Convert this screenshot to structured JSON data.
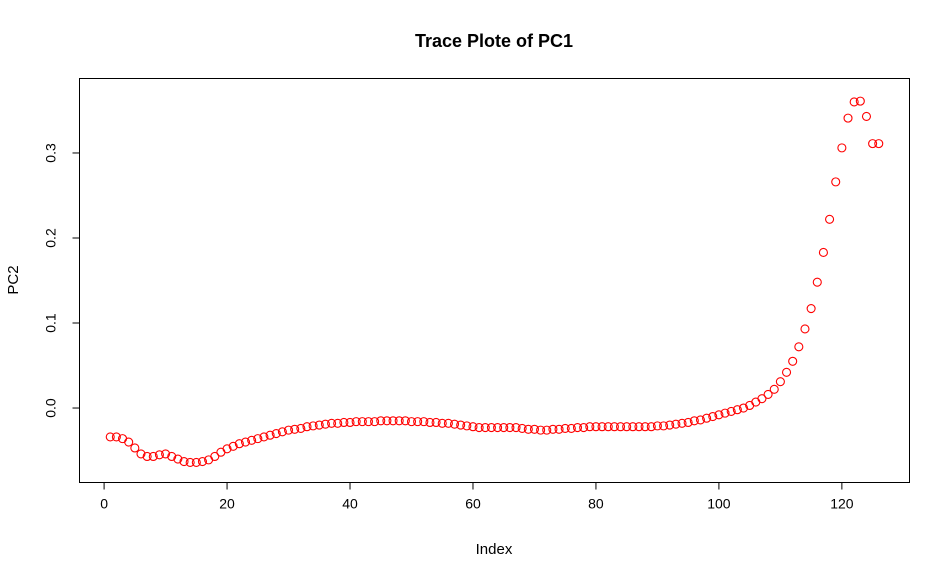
{
  "chart_data": {
    "type": "scatter",
    "title": "Trace Plote of PC1",
    "xlabel": "Index",
    "ylabel": "PC2",
    "xlim": [
      1,
      126
    ],
    "ylim": [
      -0.07,
      0.37
    ],
    "xticks": [
      0,
      20,
      40,
      60,
      80,
      100,
      120
    ],
    "yticks": [
      0.0,
      0.1,
      0.2,
      0.3
    ],
    "ytick_labels": [
      "0.0",
      "0.1",
      "0.2",
      "0.3"
    ],
    "grid": false,
    "marker": "open-circle",
    "color": "#ff0000",
    "x": [
      1,
      2,
      3,
      4,
      5,
      6,
      7,
      8,
      9,
      10,
      11,
      12,
      13,
      14,
      15,
      16,
      17,
      18,
      19,
      20,
      21,
      22,
      23,
      24,
      25,
      26,
      27,
      28,
      29,
      30,
      31,
      32,
      33,
      34,
      35,
      36,
      37,
      38,
      39,
      40,
      41,
      42,
      43,
      44,
      45,
      46,
      47,
      48,
      49,
      50,
      51,
      52,
      53,
      54,
      55,
      56,
      57,
      58,
      59,
      60,
      61,
      62,
      63,
      64,
      65,
      66,
      67,
      68,
      69,
      70,
      71,
      72,
      73,
      74,
      75,
      76,
      77,
      78,
      79,
      80,
      81,
      82,
      83,
      84,
      85,
      86,
      87,
      88,
      89,
      90,
      91,
      92,
      93,
      94,
      95,
      96,
      97,
      98,
      99,
      100,
      101,
      102,
      103,
      104,
      105,
      106,
      107,
      108,
      109,
      110,
      111,
      112,
      113,
      114,
      115,
      116,
      117,
      118,
      119,
      120,
      121,
      122,
      123,
      124,
      125,
      126
    ],
    "y": [
      -0.034,
      -0.034,
      -0.036,
      -0.04,
      -0.047,
      -0.054,
      -0.057,
      -0.057,
      -0.055,
      -0.054,
      -0.057,
      -0.06,
      -0.063,
      -0.064,
      -0.064,
      -0.063,
      -0.061,
      -0.057,
      -0.052,
      -0.048,
      -0.045,
      -0.042,
      -0.04,
      -0.038,
      -0.036,
      -0.034,
      -0.032,
      -0.03,
      -0.028,
      -0.026,
      -0.025,
      -0.024,
      -0.022,
      -0.021,
      -0.02,
      -0.019,
      -0.018,
      -0.018,
      -0.017,
      -0.017,
      -0.016,
      -0.016,
      -0.016,
      -0.016,
      -0.015,
      -0.015,
      -0.015,
      -0.015,
      -0.015,
      -0.016,
      -0.016,
      -0.016,
      -0.017,
      -0.017,
      -0.018,
      -0.018,
      -0.019,
      -0.02,
      -0.021,
      -0.022,
      -0.023,
      -0.023,
      -0.023,
      -0.023,
      -0.023,
      -0.023,
      -0.023,
      -0.024,
      -0.025,
      -0.025,
      -0.026,
      -0.026,
      -0.025,
      -0.025,
      -0.024,
      -0.024,
      -0.023,
      -0.023,
      -0.022,
      -0.022,
      -0.022,
      -0.022,
      -0.022,
      -0.022,
      -0.022,
      -0.022,
      -0.022,
      -0.022,
      -0.022,
      -0.021,
      -0.021,
      -0.02,
      -0.019,
      -0.018,
      -0.017,
      -0.015,
      -0.014,
      -0.012,
      -0.01,
      -0.008,
      -0.006,
      -0.004,
      -0.002,
      0.0,
      0.003,
      0.007,
      0.011,
      0.016,
      0.022,
      0.031,
      0.042,
      0.055,
      0.072,
      0.093,
      0.117,
      0.148,
      0.183,
      0.222,
      0.266,
      0.306,
      0.341,
      0.36,
      0.361,
      0.343,
      0.311,
      0.311
    ]
  }
}
